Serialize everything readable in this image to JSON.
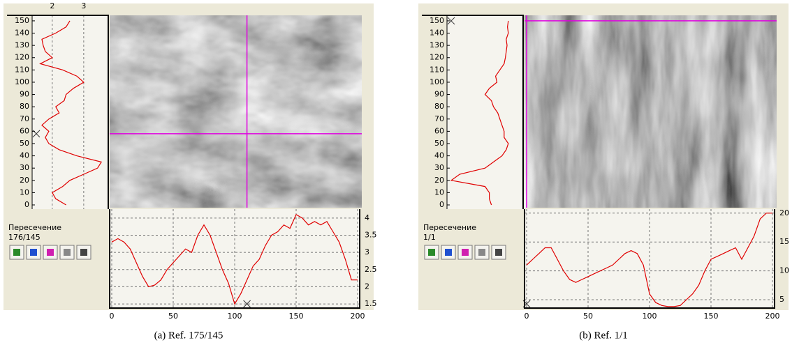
{
  "panels": [
    {
      "left_profile": {
        "type": "line",
        "color": "#e00000",
        "xlim": [
          1.36,
          3.78
        ],
        "xticks": [
          2,
          3
        ],
        "ylim": [
          -3.4,
          154.5
        ],
        "yticks": [
          0,
          10,
          20,
          30,
          40,
          50,
          60,
          70,
          80,
          90,
          100,
          110,
          120,
          130,
          140,
          150
        ],
        "positions": [
          150,
          145,
          140,
          135,
          130,
          125,
          120,
          115,
          110,
          105,
          100,
          95,
          90,
          85,
          80,
          75,
          70,
          65,
          60,
          55,
          50,
          45,
          40,
          35,
          30,
          25,
          20,
          15,
          10,
          5,
          0
        ],
        "values": [
          2.56,
          2.44,
          2.11,
          1.67,
          1.71,
          1.78,
          2.0,
          1.62,
          2.33,
          2.78,
          3.0,
          2.67,
          2.44,
          2.38,
          2.11,
          2.22,
          1.89,
          1.67,
          1.89,
          1.78,
          1.89,
          2.22,
          2.78,
          3.56,
          3.44,
          3.0,
          2.56,
          2.33,
          2.0,
          2.11,
          2.44
        ]
      },
      "bottom_profile": {
        "type": "line",
        "color": "#e00000",
        "xlim": [
          -1.7,
          201.7
        ],
        "xticks": [
          0,
          50,
          100,
          150,
          200
        ],
        "ylim": [
          1.38,
          4.26
        ],
        "yticks": [
          1.5,
          2,
          2.5,
          3,
          3.5,
          4
        ],
        "x": [
          0,
          5,
          10,
          15,
          20,
          25,
          30,
          35,
          40,
          45,
          50,
          55,
          60,
          65,
          70,
          75,
          80,
          85,
          90,
          95,
          100,
          105,
          110,
          115,
          120,
          125,
          130,
          135,
          140,
          145,
          150,
          155,
          160,
          165,
          170,
          175,
          180,
          185,
          190,
          195,
          200
        ],
        "values": [
          3.3,
          3.4,
          3.3,
          3.1,
          2.7,
          2.3,
          2.0,
          2.05,
          2.2,
          2.5,
          2.7,
          2.9,
          3.1,
          3.0,
          3.5,
          3.8,
          3.5,
          3.0,
          2.5,
          2.1,
          1.5,
          1.8,
          2.2,
          2.6,
          2.8,
          3.2,
          3.5,
          3.6,
          3.8,
          3.7,
          4.1,
          4.0,
          3.8,
          3.9,
          3.8,
          3.9,
          3.6,
          3.3,
          2.8,
          2.2,
          2.2
        ]
      },
      "cursor": {
        "x": 110,
        "y": 58
      },
      "section_label": "Пересечение",
      "section_value": "176/145",
      "caption": "(a) Ref. 175/145"
    },
    {
      "left_profile": {
        "type": "line",
        "color": "#e00000",
        "xlim": [
          3,
          21
        ],
        "ylim": [
          -3.4,
          154.5
        ],
        "yticks": [
          0,
          10,
          20,
          30,
          40,
          50,
          60,
          70,
          80,
          90,
          100,
          110,
          120,
          130,
          140,
          150
        ],
        "positions": [
          150,
          145,
          140,
          135,
          130,
          125,
          120,
          115,
          110,
          105,
          100,
          95,
          90,
          85,
          80,
          75,
          70,
          65,
          60,
          55,
          50,
          45,
          40,
          35,
          30,
          25,
          20,
          15,
          10,
          5,
          0
        ],
        "values": [
          17.5,
          17.3,
          17.5,
          17.0,
          17.2,
          17.0,
          16.8,
          16.5,
          15.5,
          14.5,
          14.8,
          13.0,
          12.0,
          13.5,
          14.0,
          15.0,
          15.5,
          16.0,
          16.5,
          16.5,
          17.5,
          17.0,
          16.0,
          14.0,
          12.0,
          6.0,
          4.0,
          12.0,
          13.0,
          13.0,
          13.5
        ]
      },
      "bottom_profile": {
        "type": "line",
        "color": "#e00000",
        "xlim": [
          -1.7,
          201.7
        ],
        "xticks": [
          0,
          50,
          100,
          150,
          200
        ],
        "ylim": [
          3.55,
          20.7
        ],
        "yticks": [
          5,
          10,
          15,
          20
        ],
        "x": [
          0,
          5,
          10,
          15,
          20,
          25,
          30,
          35,
          40,
          45,
          50,
          55,
          60,
          65,
          70,
          75,
          80,
          85,
          90,
          95,
          100,
          105,
          110,
          115,
          120,
          125,
          130,
          135,
          140,
          145,
          150,
          155,
          160,
          165,
          170,
          175,
          180,
          185,
          190,
          195,
          200
        ],
        "values": [
          11,
          12,
          13,
          14,
          14,
          12,
          10,
          8.5,
          8,
          8.5,
          9,
          9.5,
          10,
          10.5,
          11,
          12,
          13,
          13.5,
          13,
          11,
          6,
          4.5,
          4,
          3.8,
          3.8,
          4,
          5,
          6,
          7.5,
          10,
          12,
          12.5,
          13,
          13.5,
          14,
          12,
          14,
          16,
          19,
          20,
          20
        ]
      },
      "cursor": {
        "x": 0,
        "y": 150
      },
      "section_label": "Пересечение",
      "section_value": "1/1",
      "caption": "(b) Ref. 1/1"
    }
  ]
}
